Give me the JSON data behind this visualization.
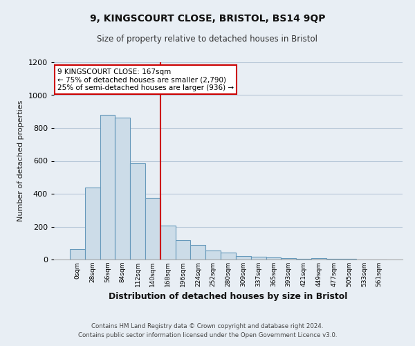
{
  "title": "9, KINGSCOURT CLOSE, BRISTOL, BS14 9QP",
  "subtitle": "Size of property relative to detached houses in Bristol",
  "xlabel": "Distribution of detached houses by size in Bristol",
  "ylabel": "Number of detached properties",
  "bar_labels": [
    "0sqm",
    "28sqm",
    "56sqm",
    "84sqm",
    "112sqm",
    "140sqm",
    "168sqm",
    "196sqm",
    "224sqm",
    "252sqm",
    "280sqm",
    "309sqm",
    "337sqm",
    "365sqm",
    "393sqm",
    "421sqm",
    "449sqm",
    "477sqm",
    "505sqm",
    "533sqm",
    "561sqm"
  ],
  "bar_values": [
    65,
    440,
    880,
    865,
    585,
    375,
    205,
    118,
    88,
    55,
    43,
    20,
    15,
    13,
    10,
    5,
    10,
    3,
    3,
    0,
    0
  ],
  "bar_color": "#ccdce8",
  "bar_edge_color": "#6699bb",
  "vline_color": "#cc0000",
  "annotation_title": "9 KINGSCOURT CLOSE: 167sqm",
  "annotation_line1": "← 75% of detached houses are smaller (2,790)",
  "annotation_line2": "25% of semi-detached houses are larger (936) →",
  "annotation_box_color": "white",
  "annotation_box_edge_color": "#cc0000",
  "ylim": [
    0,
    1200
  ],
  "yticks": [
    0,
    200,
    400,
    600,
    800,
    1000,
    1200
  ],
  "bg_color": "#e8eef4",
  "plot_bg_color": "#e8eef4",
  "grid_color": "#b8c8d8",
  "footer1": "Contains HM Land Registry data © Crown copyright and database right 2024.",
  "footer2": "Contains public sector information licensed under the Open Government Licence v3.0."
}
